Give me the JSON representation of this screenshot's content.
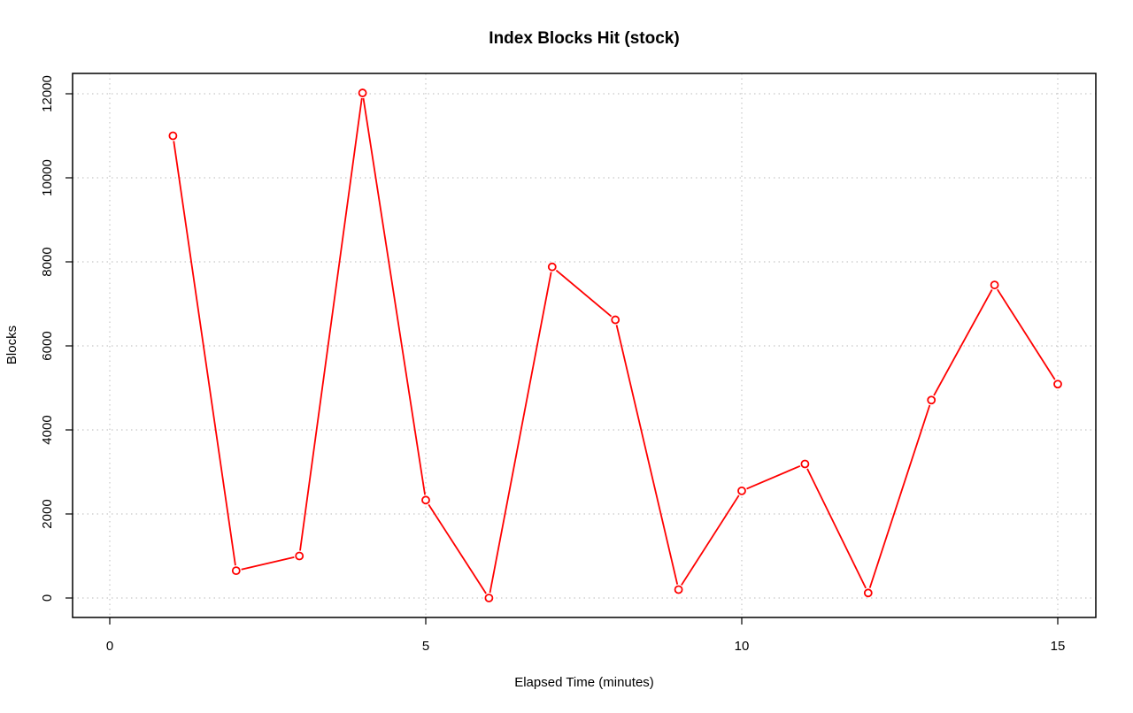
{
  "chart_data": {
    "type": "line",
    "title": "Index Blocks Hit (stock)",
    "xlabel": "Elapsed Time (minutes)",
    "ylabel": "Blocks",
    "xlim": [
      0,
      15
    ],
    "ylim": [
      0,
      12000
    ],
    "x_ticks": [
      0,
      5,
      10,
      15
    ],
    "y_ticks": [
      0,
      2000,
      4000,
      6000,
      8000,
      10000,
      12000
    ],
    "grid": true,
    "grid_style": "dotted",
    "legend": "none",
    "series": [
      {
        "color": "#ff0000",
        "marker": "open-circle",
        "x": [
          1,
          2,
          3,
          4,
          5,
          6,
          7,
          8,
          9,
          10,
          11,
          12,
          13,
          14,
          15
        ],
        "y": [
          11000,
          650,
          1000,
          12020,
          2330,
          0,
          7880,
          6620,
          200,
          2550,
          3190,
          120,
          4710,
          7450,
          5090
        ]
      }
    ]
  }
}
